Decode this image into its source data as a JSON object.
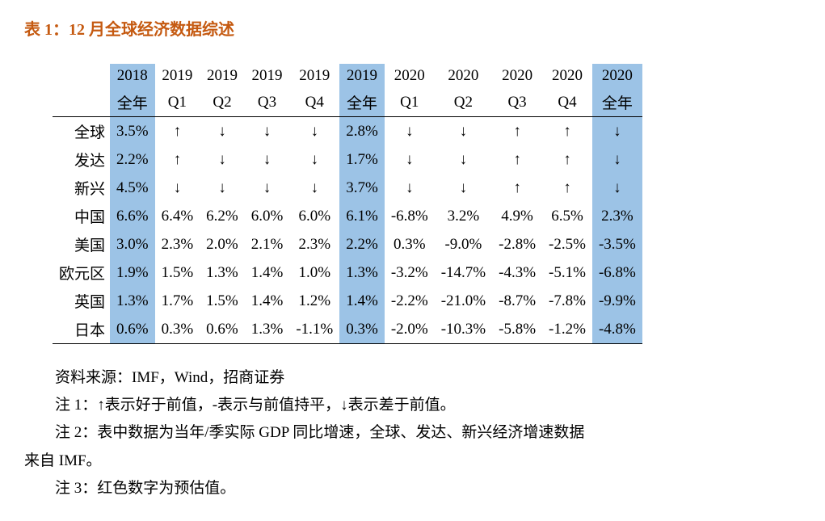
{
  "title": "表 1：12 月全球经济数据综述",
  "table": {
    "highlight_color": "#9cc3e6",
    "header": {
      "years": [
        "2018",
        "2019",
        "2019",
        "2019",
        "2019",
        "2019",
        "2020",
        "2020",
        "2020",
        "2020",
        "2020"
      ],
      "periods": [
        "全年",
        "Q1",
        "Q2",
        "Q3",
        "Q4",
        "全年",
        "Q1",
        "Q2",
        "Q3",
        "Q4",
        "全年"
      ],
      "highlight_cols": [
        0,
        5,
        10
      ]
    },
    "row_labels": [
      "全球",
      "发达",
      "新兴",
      "中国",
      "美国",
      "欧元区",
      "英国",
      "日本"
    ],
    "rows": [
      [
        "3.5%",
        "↑",
        "↓",
        "↓",
        "↓",
        "2.8%",
        "↓",
        "↓",
        "↑",
        "↑",
        "↓"
      ],
      [
        "2.2%",
        "↑",
        "↓",
        "↓",
        "↓",
        "1.7%",
        "↓",
        "↓",
        "↑",
        "↑",
        "↓"
      ],
      [
        "4.5%",
        "↓",
        "↓",
        "↓",
        "↓",
        "3.7%",
        "↓",
        "↓",
        "↑",
        "↑",
        "↓"
      ],
      [
        "6.6%",
        "6.4%",
        "6.2%",
        "6.0%",
        "6.0%",
        "6.1%",
        "-6.8%",
        "3.2%",
        "4.9%",
        "6.5%",
        "2.3%"
      ],
      [
        "3.0%",
        "2.3%",
        "2.0%",
        "2.1%",
        "2.3%",
        "2.2%",
        "0.3%",
        "-9.0%",
        "-2.8%",
        "-2.5%",
        "-3.5%"
      ],
      [
        "1.9%",
        "1.5%",
        "1.3%",
        "1.4%",
        "1.0%",
        "1.3%",
        "-3.2%",
        "-14.7%",
        "-4.3%",
        "-5.1%",
        "-6.8%"
      ],
      [
        "1.3%",
        "1.7%",
        "1.5%",
        "1.4%",
        "1.2%",
        "1.4%",
        "-2.2%",
        "-21.0%",
        "-8.7%",
        "-7.8%",
        "-9.9%"
      ],
      [
        "0.6%",
        "0.3%",
        "0.6%",
        "1.3%",
        "-1.1%",
        "0.3%",
        "-2.0%",
        "-10.3%",
        "-5.8%",
        "-1.2%",
        "-4.8%"
      ]
    ]
  },
  "notes": {
    "source": "资料来源：IMF，Wind，招商证券",
    "n1": "注 1：↑表示好于前值，-表示与前值持平，↓表示差于前值。",
    "n2a": "注 2：表中数据为当年/季实际 GDP 同比增速，全球、发达、新兴经济增速数据",
    "n2b": "来自 IMF。",
    "n3": "注 3：红色数字为预估值。"
  }
}
